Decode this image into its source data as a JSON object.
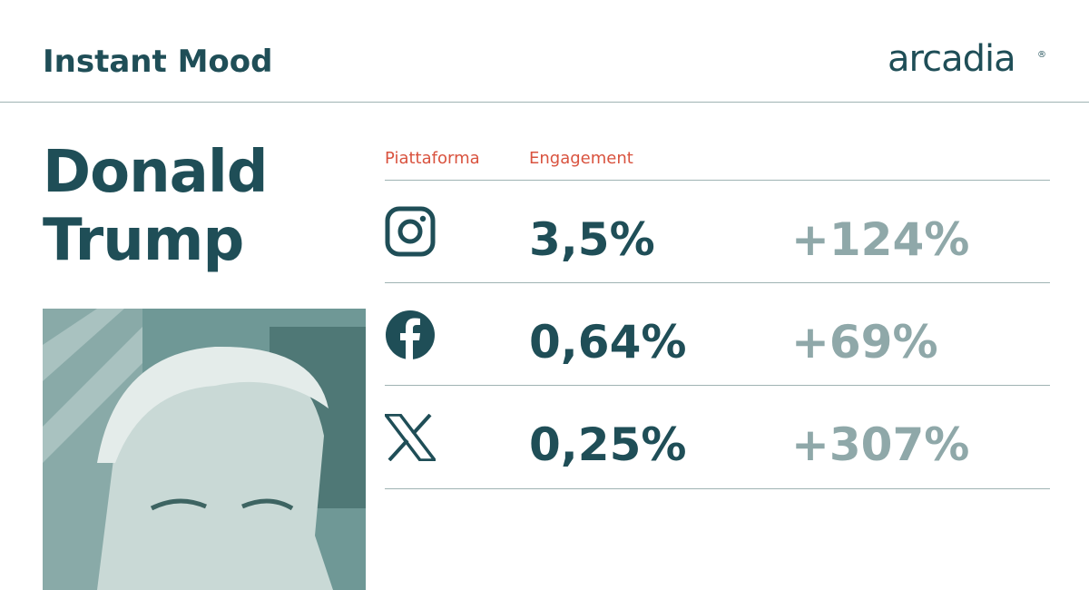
{
  "header": {
    "title": "Instant Mood",
    "logo": {
      "text": "arcadia",
      "mark": "®"
    }
  },
  "subject": {
    "name_line1": "Donald",
    "name_line2": "Trump"
  },
  "table": {
    "headers": [
      "Piattaforma",
      "Engagement"
    ],
    "rows": [
      [
        "3,5%",
        "+124%"
      ],
      [
        "0,64%",
        "+69%"
      ],
      [
        "0,25%",
        "+307%"
      ]
    ]
  }
}
